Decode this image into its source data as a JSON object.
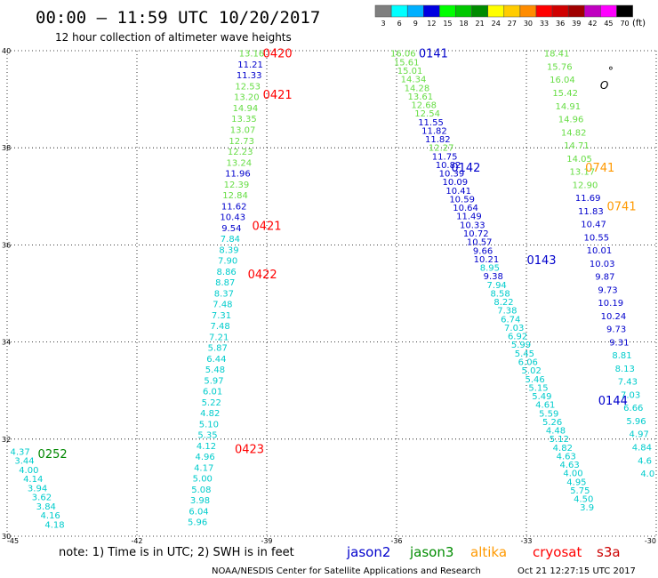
{
  "header": {
    "title": "00:00 – 11:59 UTC 10/20/2017",
    "subtitle": "12 hour collection of altimeter wave heights"
  },
  "legend": {
    "unit": "(ft)",
    "bins": [
      {
        "label": "3",
        "color": "#7f7f7f"
      },
      {
        "label": "6",
        "color": "#00ffff"
      },
      {
        "label": "9",
        "color": "#00b0ff"
      },
      {
        "label": "12",
        "color": "#0000e0"
      },
      {
        "label": "15",
        "color": "#00ff00"
      },
      {
        "label": "18",
        "color": "#00c800"
      },
      {
        "label": "21",
        "color": "#008c00"
      },
      {
        "label": "24",
        "color": "#ffff00"
      },
      {
        "label": "27",
        "color": "#ffcc00"
      },
      {
        "label": "30",
        "color": "#ff8c00"
      },
      {
        "label": "33",
        "color": "#ff0000"
      },
      {
        "label": "36",
        "color": "#d00000"
      },
      {
        "label": "39",
        "color": "#a00000"
      },
      {
        "label": "42",
        "color": "#c000c0"
      },
      {
        "label": "45",
        "color": "#ff00ff"
      },
      {
        "label": "70",
        "color": "#000000"
      }
    ]
  },
  "footer": {
    "note": "note:  1) Time is in UTC;  2) SWH is in feet",
    "satellites": [
      {
        "name": "jason2",
        "color": "#0000cc"
      },
      {
        "name": "jason3",
        "color": "#008c00"
      },
      {
        "name": "altika",
        "color": "#ff9900"
      },
      {
        "name": "cryosat",
        "color": "#ff0000"
      },
      {
        "name": "s3a",
        "color": "#cc0000"
      }
    ],
    "credit": "NOAA/NESDIS Center for Satellite Applications and Research",
    "timestamp": "Oct 21 12:27:15 UTC 2017"
  },
  "chart_data": {
    "type": "scatter",
    "xlim": [
      -45,
      -30
    ],
    "ylim": [
      30,
      40
    ],
    "xticks": [
      "-45",
      "-42",
      "-39",
      "-36",
      "-33",
      "-30"
    ],
    "yticks": [
      "30",
      "32",
      "34",
      "36",
      "38",
      "40"
    ],
    "grid": true,
    "colors": {
      "cyan": "#00cccc",
      "lgreen": "#66dd44",
      "blue": "#0000cc",
      "red": "#ff0000",
      "orange": "#ff9900",
      "dgreen": "#008800"
    },
    "tracks": [
      {
        "lon_start": -39.35,
        "lon_end": -40.6,
        "lat_start": 39.95,
        "lat_end": 30.3,
        "values": [
          {
            "v": "13.16",
            "c": "lgreen"
          },
          {
            "v": "11.21",
            "c": "blue"
          },
          {
            "v": "11.33",
            "c": "blue"
          },
          {
            "v": "12.53",
            "c": "lgreen"
          },
          {
            "v": "13.20",
            "c": "lgreen"
          },
          {
            "v": "14.94",
            "c": "lgreen"
          },
          {
            "v": "13.35",
            "c": "lgreen"
          },
          {
            "v": "13.07",
            "c": "lgreen"
          },
          {
            "v": "12.73",
            "c": "lgreen"
          },
          {
            "v": "12.23",
            "c": "lgreen"
          },
          {
            "v": "13.24",
            "c": "lgreen"
          },
          {
            "v": "11.96",
            "c": "blue"
          },
          {
            "v": "12.39",
            "c": "lgreen"
          },
          {
            "v": "12.84",
            "c": "lgreen"
          },
          {
            "v": "11.62",
            "c": "blue"
          },
          {
            "v": "10.43",
            "c": "blue"
          },
          {
            "v": "9.54",
            "c": "blue"
          },
          {
            "v": "7.84",
            "c": "cyan"
          },
          {
            "v": "8.39",
            "c": "cyan"
          },
          {
            "v": "7.90",
            "c": "cyan"
          },
          {
            "v": "8.86",
            "c": "cyan"
          },
          {
            "v": "8.87",
            "c": "cyan"
          },
          {
            "v": "8.37",
            "c": "cyan"
          },
          {
            "v": "7.48",
            "c": "cyan"
          },
          {
            "v": "7.31",
            "c": "cyan"
          },
          {
            "v": "7.48",
            "c": "cyan"
          },
          {
            "v": "7.21",
            "c": "cyan"
          },
          {
            "v": "5.87",
            "c": "cyan"
          },
          {
            "v": "6.44",
            "c": "cyan"
          },
          {
            "v": "5.48",
            "c": "cyan"
          },
          {
            "v": "5.97",
            "c": "cyan"
          },
          {
            "v": "6.01",
            "c": "cyan"
          },
          {
            "v": "5.22",
            "c": "cyan"
          },
          {
            "v": "4.82",
            "c": "cyan"
          },
          {
            "v": "5.10",
            "c": "cyan"
          },
          {
            "v": "5.35",
            "c": "cyan"
          },
          {
            "v": "4.12",
            "c": "cyan"
          },
          {
            "v": "4.96",
            "c": "cyan"
          },
          {
            "v": "4.17",
            "c": "cyan"
          },
          {
            "v": "5.00",
            "c": "cyan"
          },
          {
            "v": "5.08",
            "c": "cyan"
          },
          {
            "v": "3.98",
            "c": "cyan"
          },
          {
            "v": "6.04",
            "c": "cyan"
          },
          {
            "v": "5.96",
            "c": "cyan"
          }
        ]
      },
      {
        "lon_start": -35.85,
        "lon_end": -31.6,
        "lat_start": 39.95,
        "lat_end": 30.6,
        "values": [
          {
            "v": "16.06",
            "c": "lgreen"
          },
          {
            "v": "15.61",
            "c": "lgreen"
          },
          {
            "v": "15.01",
            "c": "lgreen"
          },
          {
            "v": "14.34",
            "c": "lgreen"
          },
          {
            "v": "14.28",
            "c": "lgreen"
          },
          {
            "v": "13.61",
            "c": "lgreen"
          },
          {
            "v": "12.68",
            "c": "lgreen"
          },
          {
            "v": "12.54",
            "c": "lgreen"
          },
          {
            "v": "11.55",
            "c": "blue"
          },
          {
            "v": "11.82",
            "c": "blue"
          },
          {
            "v": "11.82",
            "c": "blue"
          },
          {
            "v": "12.27",
            "c": "lgreen"
          },
          {
            "v": "11.75",
            "c": "blue"
          },
          {
            "v": "10.82",
            "c": "blue"
          },
          {
            "v": "10.39",
            "c": "blue"
          },
          {
            "v": "10.09",
            "c": "blue"
          },
          {
            "v": "10.41",
            "c": "blue"
          },
          {
            "v": "10.59",
            "c": "blue"
          },
          {
            "v": "10.64",
            "c": "blue"
          },
          {
            "v": "11.49",
            "c": "blue"
          },
          {
            "v": "10.33",
            "c": "blue"
          },
          {
            "v": "10.72",
            "c": "blue"
          },
          {
            "v": "10.57",
            "c": "blue"
          },
          {
            "v": "9.66",
            "c": "blue"
          },
          {
            "v": "10.21",
            "c": "blue"
          },
          {
            "v": "8.95",
            "c": "cyan"
          },
          {
            "v": "9.38",
            "c": "blue"
          },
          {
            "v": "7.94",
            "c": "cyan"
          },
          {
            "v": "8.58",
            "c": "cyan"
          },
          {
            "v": "8.22",
            "c": "cyan"
          },
          {
            "v": "7.38",
            "c": "cyan"
          },
          {
            "v": "6.74",
            "c": "cyan"
          },
          {
            "v": "7.03",
            "c": "cyan"
          },
          {
            "v": "6.92",
            "c": "cyan"
          },
          {
            "v": "5.99",
            "c": "cyan"
          },
          {
            "v": "5.45",
            "c": "cyan"
          },
          {
            "v": "6.06",
            "c": "cyan"
          },
          {
            "v": "5.02",
            "c": "cyan"
          },
          {
            "v": "5.46",
            "c": "cyan"
          },
          {
            "v": "5.15",
            "c": "cyan"
          },
          {
            "v": "5.49",
            "c": "cyan"
          },
          {
            "v": "4.61",
            "c": "cyan"
          },
          {
            "v": "5.59",
            "c": "cyan"
          },
          {
            "v": "5.26",
            "c": "cyan"
          },
          {
            "v": "4.48",
            "c": "cyan"
          },
          {
            "v": "5.12",
            "c": "cyan"
          },
          {
            "v": "4.82",
            "c": "cyan"
          },
          {
            "v": "4.63",
            "c": "cyan"
          },
          {
            "v": "4.63",
            "c": "cyan"
          },
          {
            "v": "4.00",
            "c": "cyan"
          },
          {
            "v": "4.95",
            "c": "cyan"
          },
          {
            "v": "5.75",
            "c": "cyan"
          },
          {
            "v": "4.50",
            "c": "cyan"
          },
          {
            "v": "3.9",
            "c": "cyan"
          }
        ]
      },
      {
        "lon_start": -32.3,
        "lon_end": -30.2,
        "lat_start": 39.95,
        "lat_end": 31.3,
        "values": [
          {
            "v": "18.41",
            "c": "lgreen"
          },
          {
            "v": "15.76",
            "c": "lgreen"
          },
          {
            "v": "16.04",
            "c": "lgreen"
          },
          {
            "v": "15.42",
            "c": "lgreen"
          },
          {
            "v": "14.91",
            "c": "lgreen"
          },
          {
            "v": "14.96",
            "c": "lgreen"
          },
          {
            "v": "14.82",
            "c": "lgreen"
          },
          {
            "v": "14.71",
            "c": "lgreen"
          },
          {
            "v": "14.05",
            "c": "lgreen"
          },
          {
            "v": "13.17",
            "c": "lgreen"
          },
          {
            "v": "12.90",
            "c": "lgreen"
          },
          {
            "v": "11.69",
            "c": "blue"
          },
          {
            "v": "11.83",
            "c": "blue"
          },
          {
            "v": "10.47",
            "c": "blue"
          },
          {
            "v": "10.55",
            "c": "blue"
          },
          {
            "v": "10.01",
            "c": "blue"
          },
          {
            "v": "10.03",
            "c": "blue"
          },
          {
            "v": "9.87",
            "c": "blue"
          },
          {
            "v": "9.73",
            "c": "blue"
          },
          {
            "v": "10.19",
            "c": "blue"
          },
          {
            "v": "10.24",
            "c": "blue"
          },
          {
            "v": "9.73",
            "c": "blue"
          },
          {
            "v": "9.31",
            "c": "blue"
          },
          {
            "v": "8.81",
            "c": "cyan"
          },
          {
            "v": "8.13",
            "c": "cyan"
          },
          {
            "v": "7.43",
            "c": "cyan"
          },
          {
            "v": "7.03",
            "c": "cyan"
          },
          {
            "v": "6.66",
            "c": "cyan"
          },
          {
            "v": "5.96",
            "c": "cyan"
          },
          {
            "v": "4.97",
            "c": "cyan"
          },
          {
            "v": "4.84",
            "c": "cyan"
          },
          {
            "v": "4.6",
            "c": "cyan"
          },
          {
            "v": "4.0",
            "c": "cyan"
          }
        ]
      },
      {
        "lon_start": -44.7,
        "lon_end": -43.9,
        "lat_start": 31.75,
        "lat_end": 30.25,
        "values": [
          {
            "v": "4.37",
            "c": "cyan"
          },
          {
            "v": "3.44",
            "c": "cyan"
          },
          {
            "v": "4.00",
            "c": "cyan"
          },
          {
            "v": "4.14",
            "c": "cyan"
          },
          {
            "v": "3.94",
            "c": "cyan"
          },
          {
            "v": "3.62",
            "c": "cyan"
          },
          {
            "v": "3.84",
            "c": "cyan"
          },
          {
            "v": "4.16",
            "c": "cyan"
          },
          {
            "v": "4.18",
            "c": "cyan"
          }
        ]
      }
    ],
    "time_labels": [
      {
        "text": "0420",
        "lon": -38.75,
        "lat": 39.95,
        "c": "red"
      },
      {
        "text": "0421",
        "lon": -38.75,
        "lat": 39.1,
        "c": "red"
      },
      {
        "text": "0421",
        "lon": -39.0,
        "lat": 36.4,
        "c": "red"
      },
      {
        "text": "0422",
        "lon": -39.1,
        "lat": 35.4,
        "c": "red"
      },
      {
        "text": "0423",
        "lon": -39.4,
        "lat": 31.8,
        "c": "red"
      },
      {
        "text": "0141",
        "lon": -35.15,
        "lat": 39.95,
        "c": "blue"
      },
      {
        "text": "0142",
        "lon": -34.4,
        "lat": 37.6,
        "c": "blue"
      },
      {
        "text": "0143",
        "lon": -32.65,
        "lat": 35.7,
        "c": "blue"
      },
      {
        "text": "0144",
        "lon": -31.0,
        "lat": 32.8,
        "c": "blue"
      },
      {
        "text": "0741",
        "lon": -31.3,
        "lat": 37.6,
        "c": "orange"
      },
      {
        "text": "0741",
        "lon": -30.8,
        "lat": 36.8,
        "c": "orange"
      },
      {
        "text": "0252",
        "lon": -43.95,
        "lat": 31.7,
        "c": "dgreen"
      }
    ],
    "annotations": [
      {
        "text": "°",
        "lon": -31.05,
        "lat": 39.6
      },
      {
        "text": "O",
        "lon": -31.2,
        "lat": 39.3
      }
    ]
  }
}
